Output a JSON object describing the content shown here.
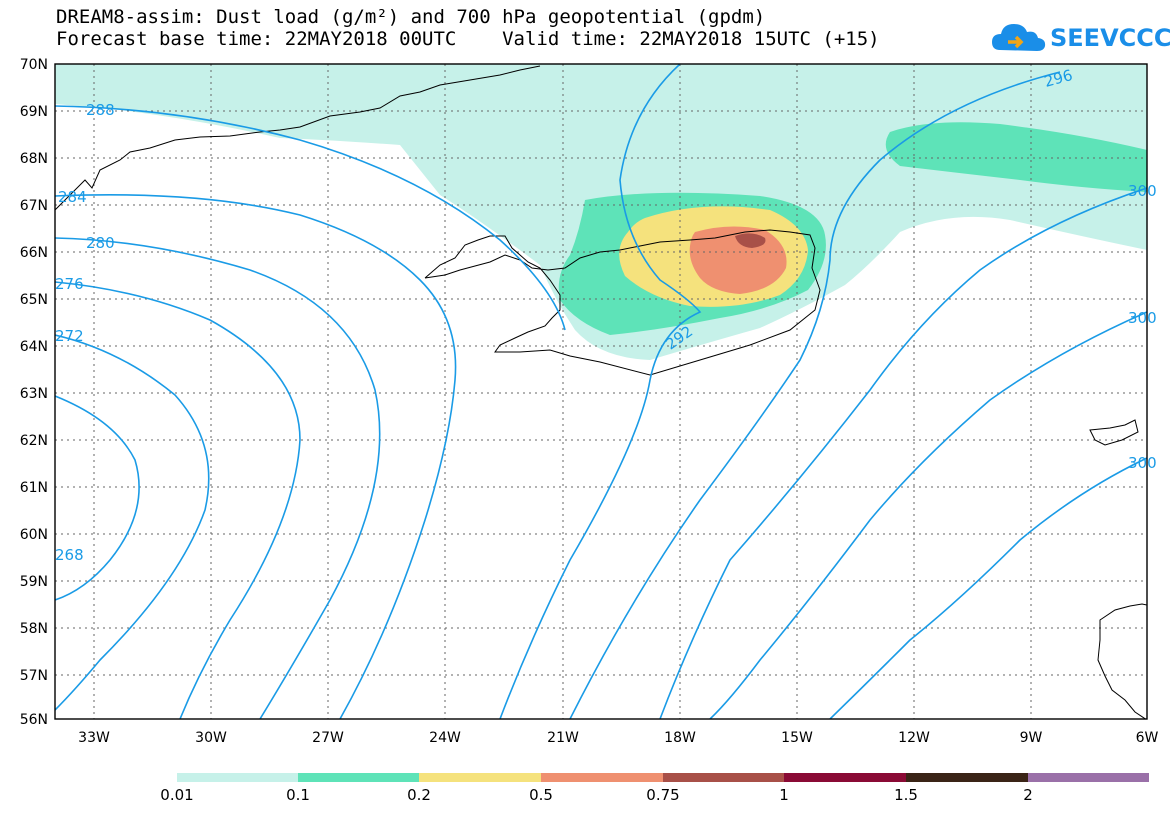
{
  "title": {
    "line1": "DREAM8-assim: Dust load (g/m²) and 700 hPa geopotential (gpdm)",
    "line2": "Forecast base time: 22MAY2018 00UTC    Valid time: 22MAY2018 15UTC (+15)"
  },
  "logo": {
    "text": "SEEVCCC"
  },
  "map": {
    "lat_labels": [
      "70N",
      "69N",
      "68N",
      "67N",
      "66N",
      "65N",
      "64N",
      "63N",
      "62N",
      "61N",
      "60N",
      "59N",
      "58N",
      "57N",
      "56N"
    ],
    "lon_labels": [
      "33W",
      "30W",
      "27W",
      "24W",
      "21W",
      "18W",
      "15W",
      "12W",
      "9W",
      "6W"
    ],
    "contour_labels": [
      {
        "text": "288"
      },
      {
        "text": "284"
      },
      {
        "text": "280"
      },
      {
        "text": "276"
      },
      {
        "text": "272"
      },
      {
        "text": "268"
      },
      {
        "text": "292"
      },
      {
        "text": "296"
      },
      {
        "text": "300"
      },
      {
        "text": "300"
      },
      {
        "text": "300"
      }
    ],
    "contour_color": "#1a9be6",
    "coast_color": "#000000"
  },
  "legend": {
    "levels": [
      "0.01",
      "0.1",
      "0.2",
      "0.5",
      "0.75",
      "1",
      "1.5",
      "2"
    ],
    "colors": [
      "#c6f1e9",
      "#5ee3b8",
      "#f5e27d",
      "#ef9070",
      "#a85048",
      "#8a0a35",
      "#3a2416",
      "#9a70a8"
    ]
  }
}
